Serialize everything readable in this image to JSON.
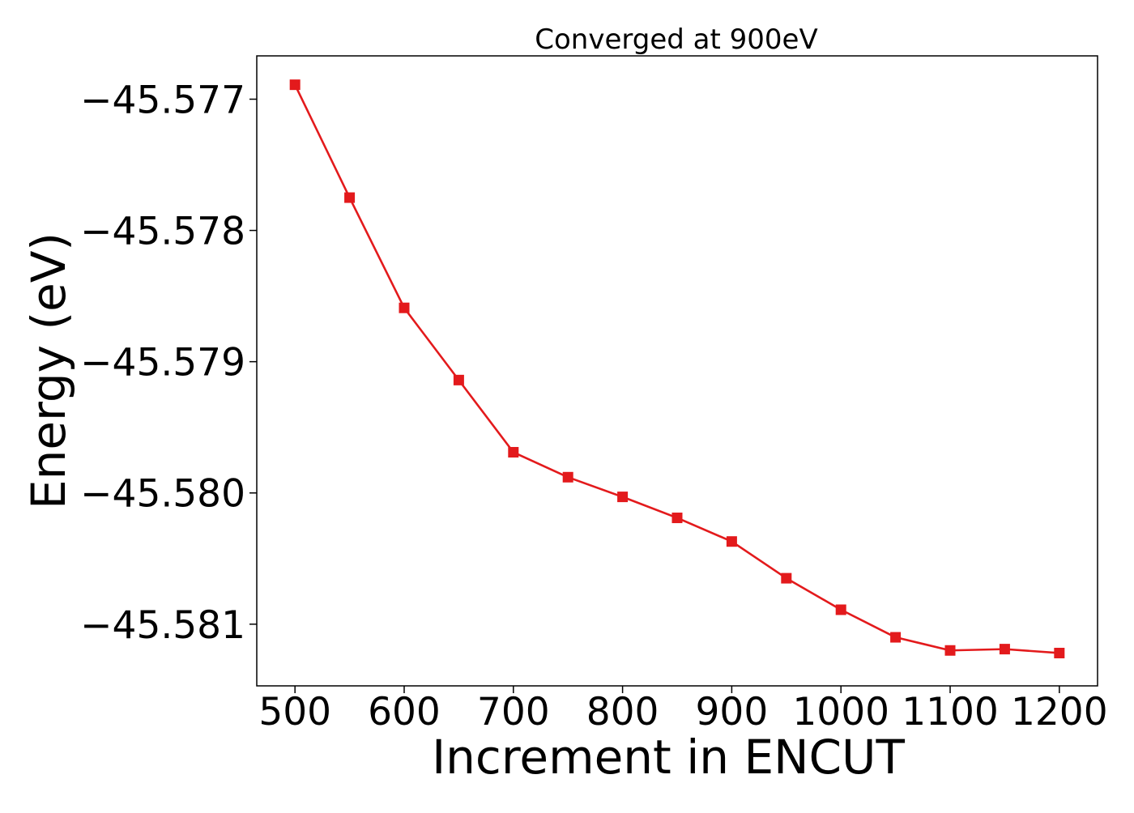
{
  "chart_data": {
    "type": "line",
    "title": "Converged at 900eV",
    "xlabel": "Increment in ENCUT",
    "ylabel": "Energy (eV)",
    "xlim": [
      465,
      1235
    ],
    "ylim": [
      -45.58147,
      -45.57667
    ],
    "xticks": [
      500,
      600,
      700,
      800,
      900,
      1000,
      1100,
      1200
    ],
    "xtick_labels": [
      "500",
      "600",
      "700",
      "800",
      "900",
      "1000",
      "1100",
      "1200"
    ],
    "yticks": [
      -45.577,
      -45.578,
      -45.579,
      -45.58,
      -45.581
    ],
    "ytick_labels": [
      "−45.577",
      "−45.578",
      "−45.579",
      "−45.580",
      "−45.581"
    ],
    "grid": false,
    "series": [
      {
        "color": "#e31a1c",
        "marker": "square",
        "x": [
          500,
          550,
          600,
          650,
          700,
          750,
          800,
          850,
          900,
          950,
          1000,
          1050,
          1100,
          1150,
          1200
        ],
        "y": [
          -45.57689,
          -45.57775,
          -45.57859,
          -45.57914,
          -45.57969,
          -45.57988,
          -45.58003,
          -45.58019,
          -45.58037,
          -45.58065,
          -45.58089,
          -45.5811,
          -45.5812,
          -45.58119,
          -45.58122
        ]
      }
    ]
  }
}
